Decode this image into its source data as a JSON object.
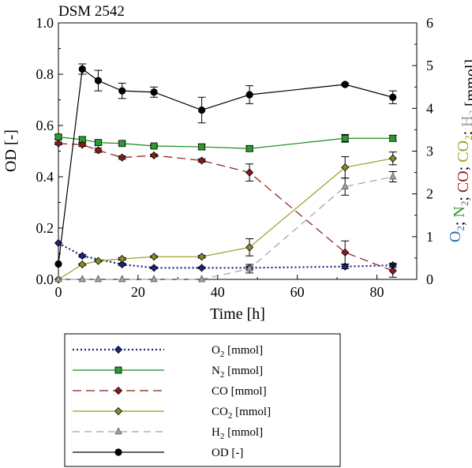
{
  "chart_data": {
    "type": "line",
    "title": "DSM 2542",
    "xlabel": "Time [h]",
    "ylabel": "OD [-]",
    "y2label_parts": [
      {
        "text": "O",
        "sub": "2",
        "color": "#1f6fb0"
      },
      {
        "text": "; ",
        "color": "#000000"
      },
      {
        "text": "N",
        "sub": "2",
        "color": "#2e8b2e"
      },
      {
        "text": "; ",
        "color": "#000000"
      },
      {
        "text": "CO",
        "color": "#8b1a1a"
      },
      {
        "text": "; ",
        "color": "#000000"
      },
      {
        "text": "CO",
        "sub": "2",
        "color": "#a0a020"
      },
      {
        "text": "; ",
        "color": "#000000"
      },
      {
        "text": "H",
        "sub": "2",
        "color": "#a0a0a0"
      },
      {
        "text": " [mmol]",
        "color": "#000000"
      }
    ],
    "xlim": [
      0,
      90
    ],
    "ylim": [
      0,
      1.0
    ],
    "y2lim": [
      0,
      6
    ],
    "xticks": [
      "0",
      "20",
      "40",
      "60",
      "80"
    ],
    "yticks": [
      "0.0",
      "0.2",
      "0.4",
      "0.6",
      "0.8",
      "1.0"
    ],
    "y2ticks": [
      "0",
      "1",
      "2",
      "3",
      "4",
      "5",
      "6"
    ],
    "grid": false,
    "legend_position": "bottom",
    "series": [
      {
        "name": "O",
        "name_sub": "2",
        "name_suffix": " [mmol]",
        "axis": "right",
        "color": "#1a237e",
        "dash": "2,3",
        "width": 2.2,
        "marker": "diamond",
        "marker_fill": "#1a237e",
        "x": [
          0,
          6,
          16,
          24,
          36,
          48,
          72,
          84
        ],
        "y": [
          0.85,
          0.55,
          0.35,
          0.27,
          0.27,
          0.27,
          0.3,
          0.33
        ],
        "err": [
          0,
          0.03,
          0.03,
          0.02,
          0.02,
          0.04,
          0.05,
          0.05
        ]
      },
      {
        "name": "N",
        "name_sub": "2",
        "name_suffix": " [mmol]",
        "axis": "right",
        "color": "#1a8a1a",
        "dash": "",
        "width": 1.2,
        "marker": "square",
        "marker_fill": "#2e9a2e",
        "x": [
          0,
          6,
          10,
          16,
          24,
          36,
          48,
          72,
          84
        ],
        "y": [
          3.33,
          3.27,
          3.2,
          3.18,
          3.12,
          3.1,
          3.06,
          3.3,
          3.3
        ],
        "err": [
          0.05,
          0.07,
          0.06,
          0.04,
          0.03,
          0.06,
          0.06,
          0.09,
          0.07
        ]
      },
      {
        "name": "CO",
        "name_sub": "",
        "name_suffix": " [mmol]",
        "axis": "right",
        "color": "#8b1a1a",
        "dash": "11,6",
        "width": 1.2,
        "marker": "diamond",
        "marker_fill": "#8b1a1a",
        "x": [
          0,
          6,
          10,
          16,
          24,
          36,
          48,
          72,
          84
        ],
        "y": [
          3.18,
          3.15,
          3.02,
          2.85,
          2.9,
          2.78,
          2.5,
          0.63,
          0.2
        ],
        "err": [
          0.03,
          0.04,
          0.05,
          0.04,
          0.03,
          0.04,
          0.2,
          0.27,
          0.15
        ]
      },
      {
        "name": "CO",
        "name_sub": "2",
        "name_suffix": " [mmol]",
        "axis": "right",
        "color": "#9a9a20",
        "dash": "",
        "width": 1.2,
        "marker": "diamond",
        "marker_fill": "#8a8a2a",
        "x": [
          0,
          6,
          10,
          16,
          24,
          36,
          48,
          72,
          84
        ],
        "y": [
          0,
          0.35,
          0.43,
          0.48,
          0.53,
          0.53,
          0.75,
          2.62,
          2.83
        ],
        "err": [
          0,
          0.02,
          0.02,
          0.03,
          0.02,
          0.03,
          0.2,
          0.25,
          0.15
        ]
      },
      {
        "name": "H",
        "name_sub": "2",
        "name_suffix": " [mmol]",
        "axis": "right",
        "color": "#a0a0a0",
        "dash": "9,6",
        "width": 1.2,
        "marker": "triangle",
        "marker_fill": "#a0a0a0",
        "x": [
          0,
          6,
          10,
          16,
          24,
          36,
          48,
          72,
          84
        ],
        "y": [
          0,
          0,
          0,
          0,
          0,
          0,
          0.25,
          2.17,
          2.4
        ],
        "err": [
          0,
          0,
          0,
          0,
          0,
          0,
          0.1,
          0.2,
          0.12
        ]
      },
      {
        "name": "OD",
        "name_sub": "",
        "name_suffix": " [-]",
        "axis": "left",
        "color": "#000000",
        "dash": "",
        "width": 1.2,
        "marker": "circle",
        "marker_fill": "#000000",
        "x": [
          0,
          6,
          10,
          16,
          24,
          36,
          48,
          72,
          84
        ],
        "y": [
          0.06,
          0.82,
          0.775,
          0.735,
          0.73,
          0.66,
          0.72,
          0.76,
          0.71
        ],
        "err": [
          0,
          0.02,
          0.04,
          0.03,
          0.02,
          0.05,
          0.035,
          0.005,
          0.025
        ]
      }
    ]
  }
}
